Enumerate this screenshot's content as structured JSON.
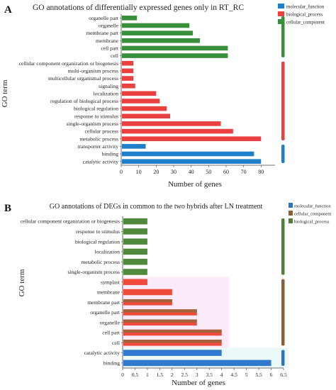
{
  "chart_data": [
    {
      "type": "bar",
      "orientation": "horizontal",
      "panel_label": "A",
      "title": "GO annotations of differentially expressed genes only in RT_RC",
      "xlabel": "Number of genes",
      "ylabel": "GO term",
      "xlim": [
        0,
        88
      ],
      "xticks": [
        "0",
        "10",
        "20",
        "30",
        "40",
        "50",
        "60",
        "70",
        "80"
      ],
      "legend_position": "top-right",
      "legend": [
        {
          "name": "molecular_function",
          "color": "#1f7fc8"
        },
        {
          "name": "biological_process",
          "color": "#e8413f"
        },
        {
          "name": "cellular_component",
          "color": "#3a8f3a"
        }
      ],
      "categories": [
        "organelle part",
        "organelle",
        "membrane part",
        "membrane",
        "cell part",
        "cell",
        "cellular component organization or biogenesis",
        "multi-organism process",
        "multicellular organismal process",
        "signaling",
        "localization",
        "regulation of biological process",
        "biological regulation",
        "response to stimulus",
        "single-organism process",
        "cellular process",
        "metabolic process",
        "transporter activity",
        "binding",
        "catalytic activity"
      ],
      "values": [
        9,
        39,
        41,
        45,
        61,
        61,
        7,
        7,
        7,
        8,
        20,
        22,
        26,
        28,
        57,
        64,
        80,
        14,
        76,
        80
      ],
      "groups": [
        "cellular_component",
        "cellular_component",
        "cellular_component",
        "cellular_component",
        "cellular_component",
        "cellular_component",
        "biological_process",
        "biological_process",
        "biological_process",
        "biological_process",
        "biological_process",
        "biological_process",
        "biological_process",
        "biological_process",
        "biological_process",
        "biological_process",
        "biological_process",
        "molecular_function",
        "molecular_function",
        "molecular_function"
      ]
    },
    {
      "type": "bar",
      "orientation": "horizontal",
      "panel_label": "B",
      "title": "GO annotations of DEGs in common to the two hybrids after LN treatment",
      "xlabel": "Number of genes",
      "ylabel": "GO term",
      "xlim": [
        0,
        6.5
      ],
      "xticks": [
        "0",
        "0.5",
        "1",
        "1.5",
        "2",
        "2.5",
        "3",
        "3.5",
        "4",
        "4.5",
        "5",
        "5.5",
        "6",
        "6.5"
      ],
      "legend_position": "top-right",
      "legend": [
        {
          "name": "molecular_function",
          "color": "#2f74c4"
        },
        {
          "name": "cellular_component",
          "color": "#8a5f3a"
        },
        {
          "name": "biological_process",
          "color": "#4f7f3a"
        }
      ],
      "categories": [
        "cellular component organization or biogenesis",
        "response to stimulus",
        "biological regulation",
        "localization",
        "metabolic process",
        "single-organism process",
        "symplast",
        "membrane",
        "membrane part",
        "organelle part",
        "organelle",
        "cell part",
        "cell",
        "catalytic activity",
        "binding"
      ],
      "values": [
        1,
        1,
        1,
        1,
        1,
        1,
        1,
        2,
        2,
        3,
        3,
        4,
        4,
        4,
        6
      ],
      "bar_colors": [
        "#4f8a3c",
        "#4f8a3c",
        "#4f8a3c",
        "#4f8a3c",
        "#4f8a3c",
        "#4f8a3c",
        "#ef4b3c",
        "#ef4b3c",
        "#ef4b3c",
        "#ef4b3c",
        "#ef4b3c",
        "#ef4b3c",
        "#ef4b3c",
        "#2f7ad0",
        "#2f7ad0"
      ],
      "bar_shade_colors": [
        "",
        "",
        "",
        "",
        "",
        "",
        "",
        "",
        "#8a6a3a",
        "#8a6a3a",
        "#8a6a3a",
        "#8a6a3a",
        "#8a6a3a",
        "",
        ""
      ],
      "background_band_color": "#f8d8f0"
    }
  ]
}
